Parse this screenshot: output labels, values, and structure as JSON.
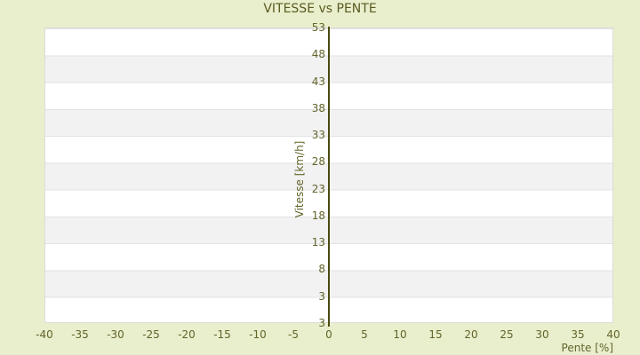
{
  "chart_data": {
    "type": "line",
    "title": "VITESSE vs PENTE",
    "xlabel": "Pente [%]",
    "ylabel": "Vitesse [km/h]",
    "x_tick_labels": [
      "-40",
      "-35",
      "-30",
      "-25",
      "-20",
      "-15",
      "-10",
      "-5",
      "0",
      "5",
      "10",
      "15",
      "20",
      "25",
      "30",
      "35",
      "40"
    ],
    "y_tick_labels": [
      "53",
      "48",
      "43",
      "38",
      "33",
      "28",
      "23",
      "18",
      "13",
      "8",
      "3",
      "3"
    ],
    "xlim": [
      -40,
      40
    ],
    "ylim": [
      -2,
      53
    ],
    "grid": "horizontal-bands-on",
    "legend": "none",
    "series": [],
    "note_visible_content": "empty plot area, vertical axis line drawn at x=0"
  },
  "colors": {
    "background": "#e9efcc",
    "plot_background": "#ffffff",
    "band_alternate": "#f2f2f2",
    "gridline": "#e2e2e2",
    "axis_line": "#4a4a10",
    "text": "#63632a",
    "title_text": "#5a5a22",
    "plot_border": "#dcdcdc"
  }
}
